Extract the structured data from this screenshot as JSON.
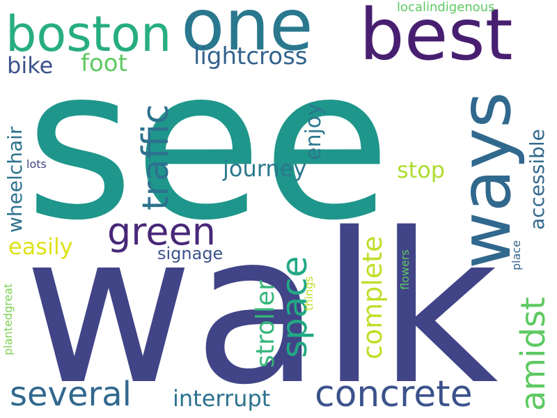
{
  "words": {
    "see": {
      "text": "see",
      "color": "#1f968b"
    },
    "walk": {
      "text": "walk",
      "color": "#414487"
    },
    "one": {
      "text": "one",
      "color": "#2a788e"
    },
    "best": {
      "text": "best",
      "color": "#481f70"
    },
    "boston": {
      "text": "boston",
      "color": "#27ad81"
    },
    "ways": {
      "text": "ways",
      "color": "#31688e"
    },
    "green": {
      "text": "green",
      "color": "#482878"
    },
    "traffic": {
      "text": "traffic",
      "color": "#2c728e"
    },
    "concrete": {
      "text": "concrete",
      "color": "#3b528b"
    },
    "several": {
      "text": "several",
      "color": "#31688e"
    },
    "space": {
      "text": "space",
      "color": "#22a884"
    },
    "amidst": {
      "text": "amidst",
      "color": "#5ec962"
    },
    "complete": {
      "text": "complete",
      "color": "#bddf26"
    },
    "stroller": {
      "text": "stroller",
      "color": "#35b779"
    },
    "lightcross": {
      "text": "lightcross",
      "color": "#33638d"
    },
    "foot": {
      "text": "foot",
      "color": "#5ec962"
    },
    "bike": {
      "text": "bike",
      "color": "#3b528b"
    },
    "journey": {
      "text": "journey",
      "color": "#2a788e"
    },
    "stop": {
      "text": "stop",
      "color": "#addc30"
    },
    "easily": {
      "text": "easily",
      "color": "#dde318"
    },
    "interrupt": {
      "text": "interrupt",
      "color": "#2c728e"
    },
    "wheelchair": {
      "text": "wheelchair",
      "color": "#2c728e"
    },
    "enjoy": {
      "text": "enjoy",
      "color": "#2a788e"
    },
    "accessible": {
      "text": "accessible",
      "color": "#31688e"
    },
    "signage": {
      "text": "signage",
      "color": "#3b528b"
    },
    "localindigenous": {
      "text": "localindigenous",
      "color": "#5ec962"
    },
    "lots": {
      "text": "lots",
      "color": "#404387"
    },
    "plantedgreat": {
      "text": "plantedgreat",
      "color": "#7ad151"
    },
    "things": {
      "text": "things",
      "color": "#bddf26"
    },
    "flowers": {
      "text": "flowers",
      "color": "#5ec962"
    },
    "place": {
      "text": "place",
      "color": "#33638d"
    }
  }
}
